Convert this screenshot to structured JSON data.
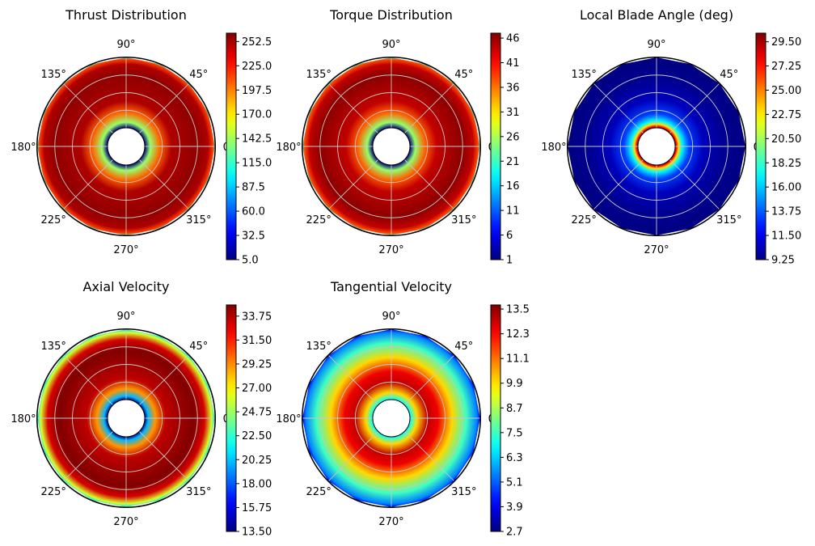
{
  "figure": {
    "layout": "2x3 grid of polar contour plots with colorbars",
    "colormap": "jet"
  },
  "chart_data": [
    {
      "type": "polar_contour",
      "title": "Thrust Distribution",
      "colorbar_ticks": [
        "5.0",
        "32.5",
        "60.0",
        "87.5",
        "115.0",
        "142.5",
        "170.0",
        "197.5",
        "225.0",
        "252.5"
      ],
      "colorbar_range": [
        5.0,
        262.0
      ],
      "angle_ticks": [
        "0°",
        "45°",
        "90°",
        "135°",
        "180°",
        "225°",
        "270°",
        "315°"
      ],
      "radial_profile": [
        {
          "r": 0.0,
          "value": 5
        },
        {
          "r": 0.08,
          "value": 140
        },
        {
          "r": 0.22,
          "value": 205
        },
        {
          "r": 0.38,
          "value": 250
        },
        {
          "r": 0.75,
          "value": 258
        },
        {
          "r": 0.9,
          "value": 250
        },
        {
          "r": 0.97,
          "value": 215
        },
        {
          "r": 1.0,
          "value": 115
        }
      ]
    },
    {
      "type": "polar_contour",
      "title": "Torque Distribution",
      "colorbar_ticks": [
        "1",
        "6",
        "11",
        "16",
        "21",
        "26",
        "31",
        "36",
        "41",
        "46"
      ],
      "colorbar_range": [
        1,
        47
      ],
      "angle_ticks": [
        "0°",
        "45°",
        "90°",
        "135°",
        "180°",
        "225°",
        "270°",
        "315°"
      ],
      "radial_profile": [
        {
          "r": 0.0,
          "value": 1
        },
        {
          "r": 0.08,
          "value": 25
        },
        {
          "r": 0.22,
          "value": 37
        },
        {
          "r": 0.38,
          "value": 44
        },
        {
          "r": 0.75,
          "value": 46.5
        },
        {
          "r": 0.9,
          "value": 44
        },
        {
          "r": 0.97,
          "value": 38
        },
        {
          "r": 1.0,
          "value": 20
        }
      ]
    },
    {
      "type": "polar_contour",
      "title": "Local Blade Angle (deg)",
      "colorbar_ticks": [
        "9.25",
        "11.50",
        "13.75",
        "16.00",
        "18.25",
        "20.50",
        "22.75",
        "25.00",
        "27.25",
        "29.50"
      ],
      "colorbar_range": [
        9.25,
        30.3
      ],
      "angle_ticks": [
        "0°",
        "45°",
        "90°",
        "135°",
        "180°",
        "225°",
        "270°",
        "315°"
      ],
      "radial_profile": [
        {
          "r": 0.0,
          "value": 30.3
        },
        {
          "r": 0.02,
          "value": 27.5
        },
        {
          "r": 0.05,
          "value": 23
        },
        {
          "r": 0.1,
          "value": 17
        },
        {
          "r": 0.2,
          "value": 13.2
        },
        {
          "r": 0.4,
          "value": 10.5
        },
        {
          "r": 0.7,
          "value": 9.6
        },
        {
          "r": 1.0,
          "value": 9.25
        }
      ]
    },
    {
      "type": "polar_contour",
      "title": "Axial Velocity",
      "colorbar_ticks": [
        "13.50",
        "15.75",
        "18.00",
        "20.25",
        "22.50",
        "24.75",
        "27.00",
        "29.25",
        "31.50",
        "33.75"
      ],
      "colorbar_range": [
        13.5,
        34.8
      ],
      "angle_ticks": [
        "0°",
        "45°",
        "90°",
        "135°",
        "180°",
        "225°",
        "270°",
        "315°"
      ],
      "radial_profile": [
        {
          "r": 0.0,
          "value": 13.5
        },
        {
          "r": 0.05,
          "value": 20
        },
        {
          "r": 0.15,
          "value": 29
        },
        {
          "r": 0.3,
          "value": 33.5
        },
        {
          "r": 0.7,
          "value": 34.8
        },
        {
          "r": 0.85,
          "value": 33
        },
        {
          "r": 0.95,
          "value": 26
        },
        {
          "r": 1.0,
          "value": 21
        }
      ]
    },
    {
      "type": "polar_contour",
      "title": "Tangential Velocity",
      "colorbar_ticks": [
        "2.7",
        "3.9",
        "5.1",
        "6.3",
        "7.5",
        "8.7",
        "9.9",
        "11.1",
        "12.3",
        "13.5"
      ],
      "colorbar_range": [
        2.7,
        13.7
      ],
      "angle_ticks": [
        "0°",
        "45°",
        "90°",
        "135°",
        "180°",
        "225°",
        "270°",
        "315°"
      ],
      "radial_profile": [
        {
          "r": 0.0,
          "value": 6.5
        },
        {
          "r": 0.03,
          "value": 7.5
        },
        {
          "r": 0.1,
          "value": 10
        },
        {
          "r": 0.25,
          "value": 13
        },
        {
          "r": 0.4,
          "value": 12.5
        },
        {
          "r": 0.6,
          "value": 10
        },
        {
          "r": 0.8,
          "value": 7.5
        },
        {
          "r": 0.95,
          "value": 5.5
        },
        {
          "r": 1.0,
          "value": 4
        }
      ]
    }
  ]
}
